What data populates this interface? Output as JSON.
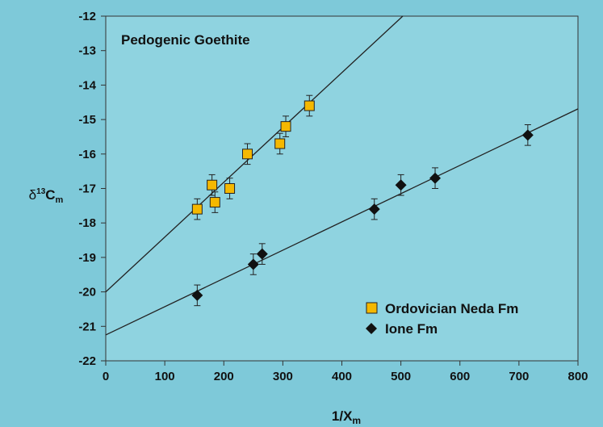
{
  "colors": {
    "background": "#7ec9d9",
    "plot_background": "#8fd3e0",
    "series_1_fill": "#f5b800",
    "series_2_fill": "#111111",
    "line": "#222222"
  },
  "chart_data": {
    "type": "scatter",
    "annotation": "Pedogenic Goethite",
    "xlabel": "1/X",
    "xlabel_subscript": "m",
    "ylabel_prefix": "δ",
    "ylabel_superscript": "13",
    "ylabel_main": "C",
    "ylabel_subscript": "m",
    "xlim": [
      0,
      800
    ],
    "ylim": [
      -22,
      -12
    ],
    "xticks": [
      0,
      100,
      200,
      300,
      400,
      500,
      600,
      700,
      800
    ],
    "yticks": [
      -22,
      -21,
      -20,
      -19,
      -18,
      -17,
      -16,
      -15,
      -14,
      -13,
      -12
    ],
    "grid": false,
    "legend_position": "bottom-right",
    "series": [
      {
        "name": "Ordovician Neda Fm",
        "marker": "square",
        "x": [
          155,
          180,
          185,
          210,
          240,
          295,
          305,
          345
        ],
        "y": [
          -17.6,
          -16.9,
          -17.4,
          -17.0,
          -16.0,
          -15.7,
          -15.2,
          -14.6
        ],
        "err": [
          0.3,
          0.3,
          0.3,
          0.3,
          0.3,
          0.3,
          0.3,
          0.3
        ],
        "fit": {
          "intercept": -20.0,
          "slope": 0.0159
        }
      },
      {
        "name": "Ione Fm",
        "marker": "diamond",
        "x": [
          155,
          250,
          265,
          455,
          500,
          558,
          715
        ],
        "y": [
          -20.1,
          -19.2,
          -18.9,
          -17.6,
          -16.9,
          -16.7,
          -15.45
        ],
        "err": [
          0.3,
          0.3,
          0.3,
          0.3,
          0.3,
          0.3,
          0.3
        ],
        "fit": {
          "intercept": -21.25,
          "slope": 0.0082
        }
      }
    ]
  }
}
